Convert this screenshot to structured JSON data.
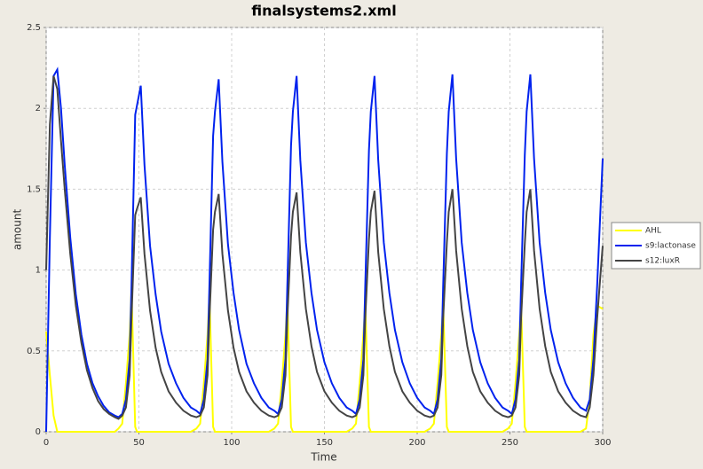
{
  "chart_data": {
    "type": "line",
    "title": "finalsystems2.xml",
    "x_label": "Time",
    "y_label": "amount",
    "x": [
      0,
      2,
      4,
      6,
      8,
      10,
      13,
      16,
      19,
      22,
      25,
      28,
      31,
      34,
      37,
      39,
      41,
      43,
      45,
      46,
      48,
      49,
      51,
      53,
      56,
      59,
      62,
      66,
      70,
      74,
      78,
      81,
      83,
      85,
      87,
      88,
      90,
      91,
      93,
      95,
      98,
      101,
      104,
      108,
      112,
      116,
      120,
      123,
      125,
      127,
      129,
      130,
      132,
      133,
      135,
      137,
      140,
      143,
      146,
      150,
      154,
      158,
      162,
      165,
      167,
      169,
      171,
      172,
      174,
      175,
      177,
      179,
      182,
      185,
      188,
      192,
      196,
      200,
      204,
      207,
      209,
      211,
      213,
      214,
      216,
      217,
      219,
      221,
      224,
      227,
      230,
      234,
      238,
      242,
      246,
      249,
      251,
      253,
      255,
      256,
      258,
      259,
      261,
      263,
      266,
      269,
      272,
      276,
      280,
      284,
      288,
      291,
      293,
      295,
      297,
      300
    ],
    "series": [
      {
        "name": "AHL",
        "color": "#ffff00",
        "values": [
          0.62,
          0.35,
          0.1,
          0,
          0,
          0,
          0,
          0,
          0,
          0,
          0,
          0,
          0,
          0,
          0,
          0.02,
          0.05,
          0.3,
          0.6,
          0.88,
          0.03,
          0,
          0,
          0,
          0,
          0,
          0,
          0,
          0,
          0,
          0,
          0.02,
          0.05,
          0.3,
          0.6,
          0.85,
          0.03,
          0,
          0,
          0,
          0,
          0,
          0,
          0,
          0,
          0,
          0,
          0.02,
          0.05,
          0.3,
          0.6,
          0.82,
          0.03,
          0,
          0,
          0,
          0,
          0,
          0,
          0,
          0,
          0,
          0,
          0.02,
          0.05,
          0.3,
          0.6,
          0.8,
          0.03,
          0,
          0,
          0,
          0,
          0,
          0,
          0,
          0,
          0,
          0,
          0.02,
          0.05,
          0.3,
          0.6,
          0.79,
          0.03,
          0,
          0,
          0,
          0,
          0,
          0,
          0,
          0,
          0,
          0,
          0.02,
          0.05,
          0.3,
          0.6,
          0.78,
          0.03,
          0,
          0,
          0,
          0,
          0,
          0,
          0,
          0,
          0,
          0,
          0.02,
          0.2,
          0.6,
          0.78,
          0.76
        ]
      },
      {
        "name": "s9:lactonase",
        "color": "#0022ee",
        "values": [
          0,
          1.2,
          2.2,
          2.24,
          2.0,
          1.65,
          1.2,
          0.85,
          0.6,
          0.42,
          0.3,
          0.22,
          0.16,
          0.12,
          0.1,
          0.09,
          0.11,
          0.2,
          0.45,
          0.9,
          1.96,
          2.02,
          2.14,
          1.65,
          1.15,
          0.85,
          0.62,
          0.42,
          0.3,
          0.21,
          0.15,
          0.13,
          0.11,
          0.2,
          0.45,
          0.9,
          1.83,
          1.98,
          2.18,
          1.67,
          1.16,
          0.86,
          0.63,
          0.42,
          0.3,
          0.21,
          0.15,
          0.13,
          0.11,
          0.2,
          0.45,
          0.9,
          1.77,
          1.98,
          2.2,
          1.68,
          1.17,
          0.86,
          0.63,
          0.43,
          0.3,
          0.21,
          0.15,
          0.13,
          0.11,
          0.2,
          0.45,
          0.9,
          1.74,
          1.98,
          2.2,
          1.68,
          1.17,
          0.86,
          0.63,
          0.43,
          0.3,
          0.21,
          0.15,
          0.13,
          0.11,
          0.2,
          0.45,
          0.9,
          1.72,
          1.98,
          2.21,
          1.69,
          1.17,
          0.86,
          0.63,
          0.43,
          0.3,
          0.21,
          0.15,
          0.13,
          0.11,
          0.2,
          0.45,
          0.9,
          1.71,
          1.98,
          2.21,
          1.69,
          1.17,
          0.86,
          0.63,
          0.43,
          0.3,
          0.21,
          0.15,
          0.13,
          0.2,
          0.45,
          0.9,
          1.69
        ]
      },
      {
        "name": "s12:luxR",
        "color": "#444444",
        "values": [
          1.0,
          1.9,
          2.2,
          2.12,
          1.8,
          1.5,
          1.1,
          0.78,
          0.55,
          0.38,
          0.27,
          0.19,
          0.14,
          0.11,
          0.09,
          0.08,
          0.1,
          0.15,
          0.35,
          0.7,
          1.34,
          1.38,
          1.45,
          1.1,
          0.75,
          0.52,
          0.37,
          0.25,
          0.18,
          0.13,
          0.1,
          0.09,
          0.1,
          0.15,
          0.35,
          0.7,
          1.25,
          1.36,
          1.47,
          1.1,
          0.75,
          0.52,
          0.37,
          0.25,
          0.18,
          0.13,
          0.1,
          0.09,
          0.1,
          0.15,
          0.35,
          0.7,
          1.21,
          1.36,
          1.48,
          1.11,
          0.76,
          0.53,
          0.37,
          0.25,
          0.18,
          0.13,
          0.1,
          0.09,
          0.1,
          0.15,
          0.35,
          0.7,
          1.19,
          1.36,
          1.49,
          1.11,
          0.76,
          0.53,
          0.37,
          0.25,
          0.18,
          0.13,
          0.1,
          0.09,
          0.1,
          0.15,
          0.35,
          0.7,
          1.17,
          1.36,
          1.5,
          1.12,
          0.76,
          0.53,
          0.37,
          0.25,
          0.18,
          0.13,
          0.1,
          0.09,
          0.1,
          0.15,
          0.35,
          0.7,
          1.16,
          1.36,
          1.5,
          1.12,
          0.76,
          0.53,
          0.37,
          0.25,
          0.18,
          0.13,
          0.1,
          0.09,
          0.15,
          0.35,
          0.7,
          1.15
        ]
      }
    ],
    "xlim": [
      0,
      300
    ],
    "xticks": [
      0,
      50,
      100,
      150,
      200,
      250,
      300
    ],
    "ylim": [
      0,
      2.5
    ],
    "yticks": [
      0,
      0.5,
      1,
      1.5,
      2,
      2.5
    ],
    "grid": true,
    "legend": "right"
  }
}
